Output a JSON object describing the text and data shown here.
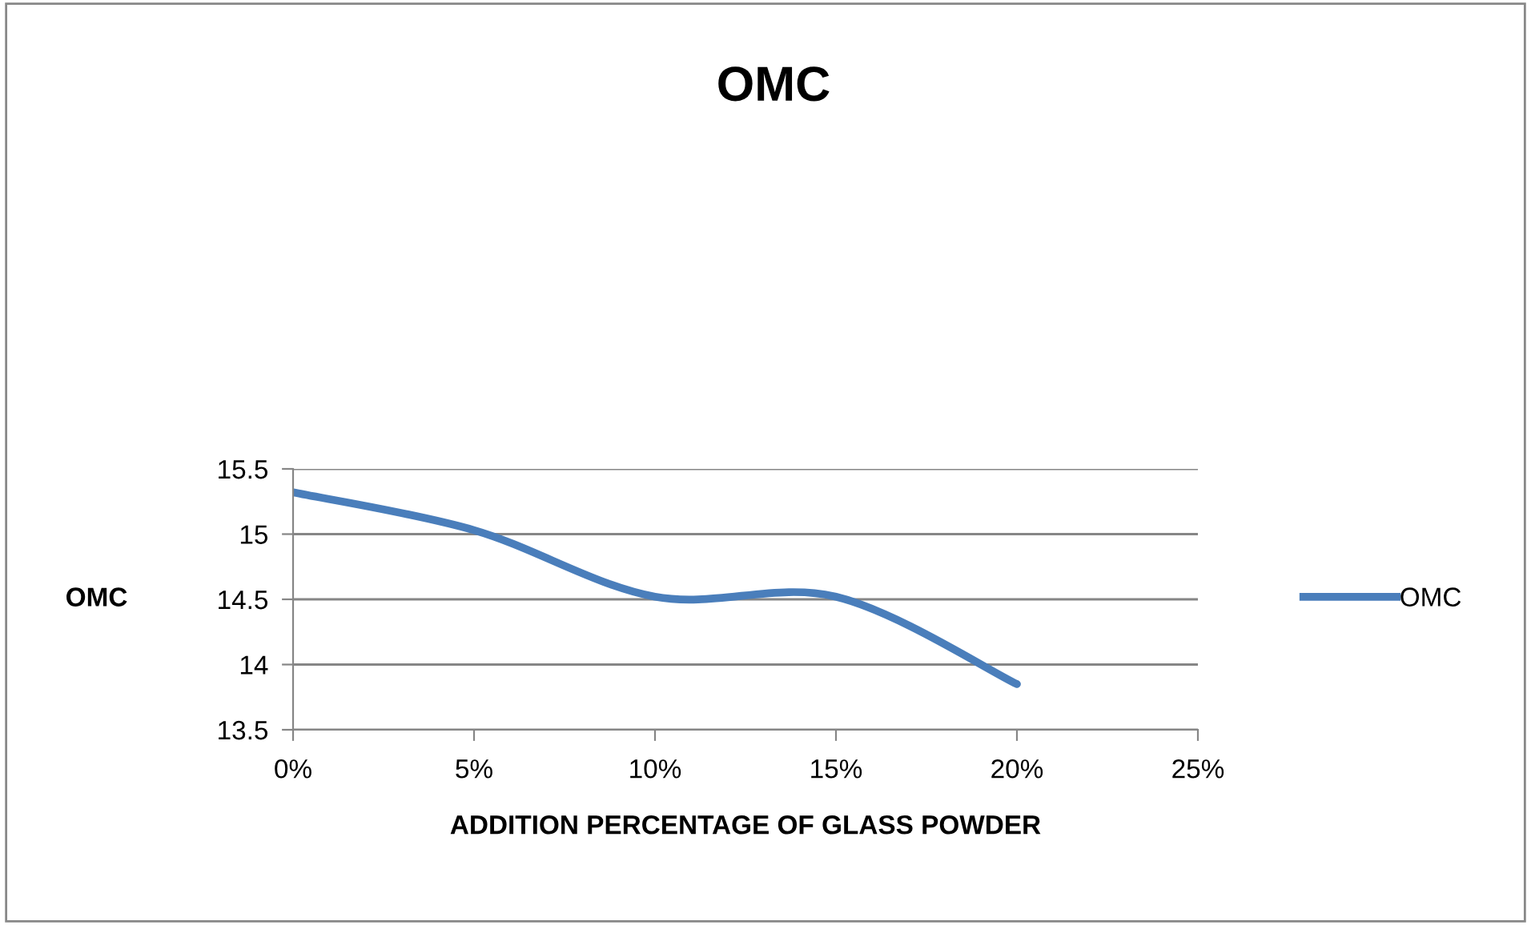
{
  "chart_data": {
    "type": "line",
    "title": "OMC",
    "xlabel": "ADDITION PERCENTAGE OF GLASS POWDER",
    "ylabel": "OMC",
    "x": [
      0,
      5,
      10,
      15,
      20
    ],
    "series": [
      {
        "name": "OMC",
        "color": "#4a7ebb",
        "values": [
          15.32,
          15.03,
          14.52,
          14.52,
          13.85
        ]
      }
    ],
    "xlim": [
      0,
      25
    ],
    "xticks": [
      {
        "value": 0,
        "label": "0%"
      },
      {
        "value": 5,
        "label": "5%"
      },
      {
        "value": 10,
        "label": "10%"
      },
      {
        "value": 15,
        "label": "15%"
      },
      {
        "value": 20,
        "label": "20%"
      },
      {
        "value": 25,
        "label": "25%"
      }
    ],
    "ylim": [
      13.5,
      15.5
    ],
    "yticks": [
      13.5,
      14,
      14.5,
      15,
      15.5
    ],
    "grid": "y",
    "legend": "right",
    "marker": "none",
    "line_style": "solid"
  }
}
